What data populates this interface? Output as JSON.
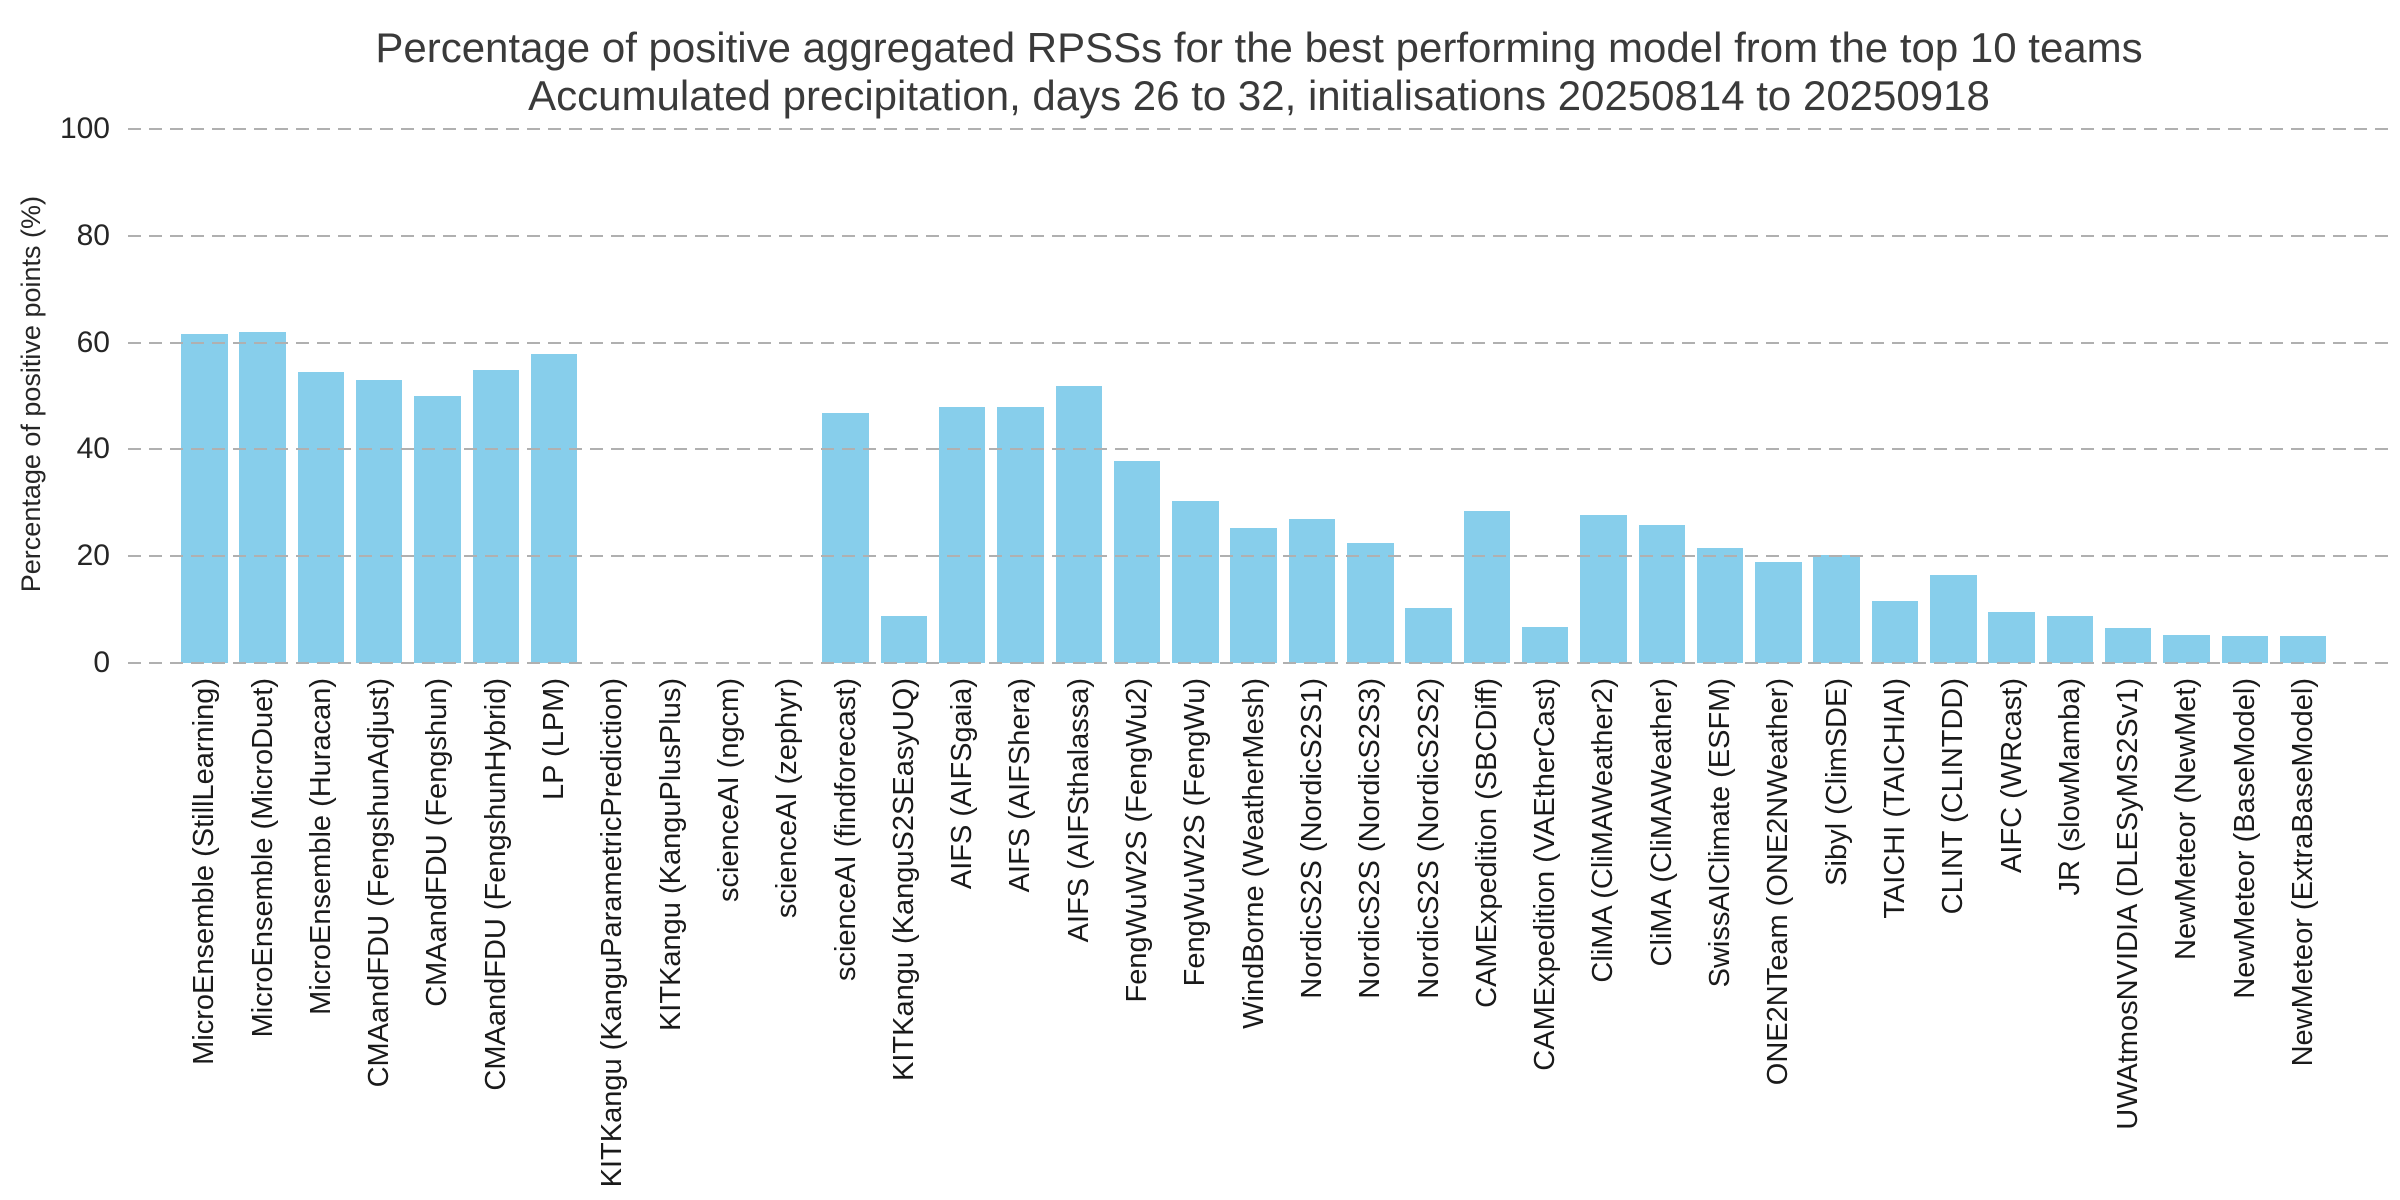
{
  "title": {
    "line1": "Percentage of positive aggregated RPSSs for the best performing model from the top 10 teams",
    "line2": "Accumulated precipitation, days 26 to 32, initialisations 20250814 to 20250918"
  },
  "chart_data": {
    "type": "bar",
    "title": "Percentage of positive aggregated RPSSs for the best performing model from the top 10 teams",
    "subtitle": "Accumulated precipitation, days 26 to 32, initialisations 20250814 to 20250918",
    "xlabel": "",
    "ylabel": "Percentage of positive points (%)",
    "ylim": [
      0,
      100
    ],
    "yticks": [
      0,
      20,
      40,
      60,
      80,
      100
    ],
    "grid": "horizontal dashed gridlines, drawn over bars",
    "legend": "none",
    "bar_color": "#87CEEB",
    "gridline_color": "#b0b0b0",
    "categories": [
      "MicroEnsemble (StillLearning)",
      "MicroEnsemble (MicroDuet)",
      "MicroEnsemble (Huracan)",
      "CMAandFDU (FengshunAdjust)",
      "CMAandFDU (Fengshun)",
      "CMAandFDU (FengshunHybrid)",
      "LP (LPM)",
      "KITKangu (KanguParametricPrediction)",
      "KITKangu (KanguPlusPlus)",
      "scienceAI (ngcm)",
      "scienceAI (zephyr)",
      "scienceAI (findforecast)",
      "KITKangu (KanguS2SEasyUQ)",
      "AIFS (AIFSgaia)",
      "AIFS (AIFShera)",
      "AIFS (AIFSthalassa)",
      "FengWuW2S (FengWu2)",
      "FengWuW2S (FengWu)",
      "WindBorne (WeatherMesh)",
      "NordicS2S (NordicS2S1)",
      "NordicS2S (NordicS2S3)",
      "NordicS2S (NordicS2S2)",
      "CAMExpedition (SBCDiff)",
      "CAMExpedition (VAEtherCast)",
      "CliMA (CliMAWeather2)",
      "CliMA (CliMAWeather)",
      "SwissAIClimate (ESFM)",
      "ONE2NTeam (ONE2NWeather)",
      "Sibyl (ClimSDE)",
      "TAICHI (TAICHIAI)",
      "CLINT (CLINTDD)",
      "AIFC (WRcast)",
      "JR (slowMamba)",
      "UWAtmosNVIDIA (DLESyMS2Sv1)",
      "NewMeteor (NewMet)",
      "NewMeteor (BaseModel)",
      "NewMeteor (ExtraBaseModel)"
    ],
    "values": [
      61.7,
      61.9,
      54.5,
      53.0,
      50.0,
      54.9,
      57.8,
      0,
      0,
      0,
      0,
      46.9,
      8.8,
      48.0,
      48.0,
      51.8,
      37.9,
      30.4,
      25.3,
      26.9,
      22.5,
      10.3,
      28.4,
      6.8,
      27.8,
      25.8,
      21.6,
      18.9,
      20.3,
      11.7,
      16.4,
      9.6,
      8.8,
      6.6,
      5.2,
      5.0,
      5.1
    ]
  }
}
